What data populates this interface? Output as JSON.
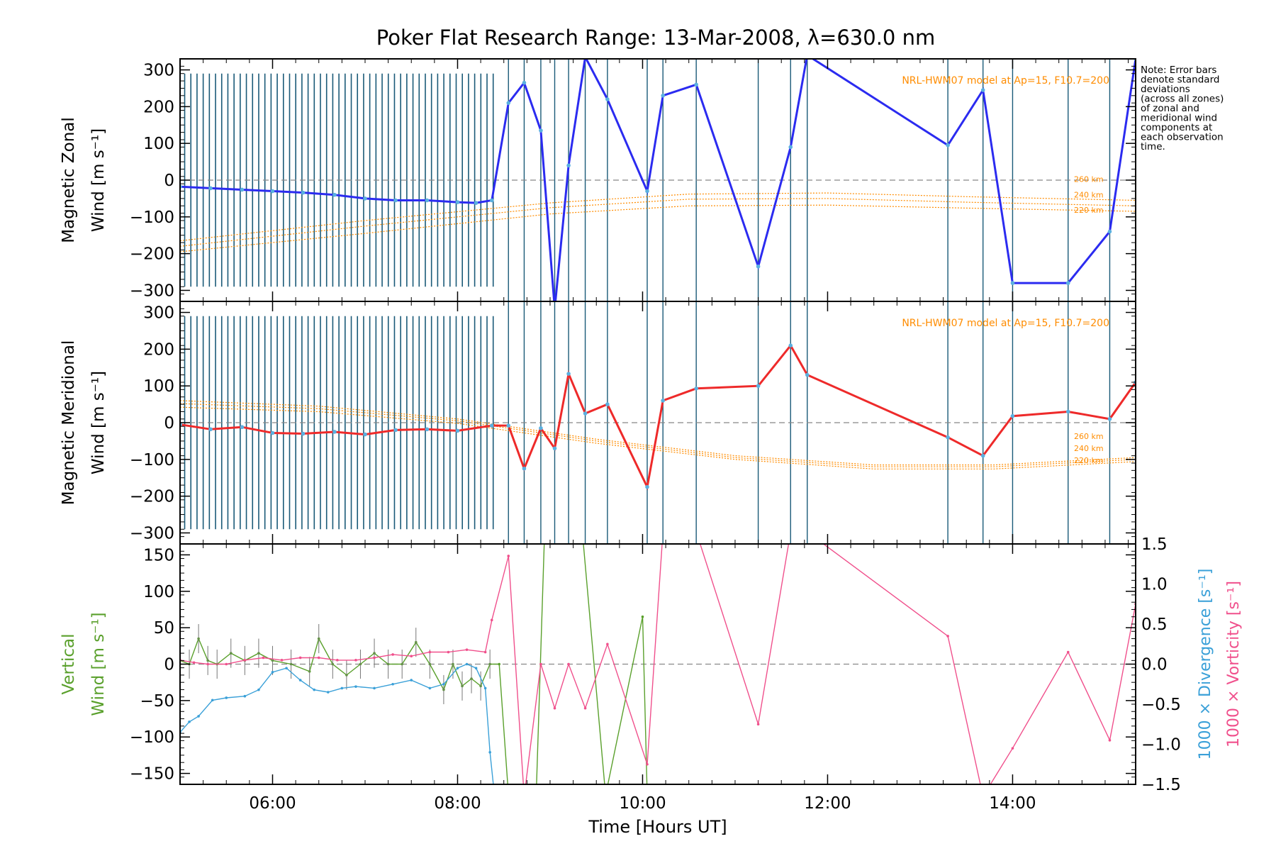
{
  "title": "Poker Flat Research Range: 13-Mar-2008, λ=630.0 nm",
  "note": [
    "Note: Error bars",
    "denote standard",
    "deviations",
    "(across all zones)",
    "of zonal and",
    "meridional wind",
    "components at",
    "each observation",
    "time."
  ],
  "colors": {
    "zonal": "#2b2bf0",
    "meridional": "#ee2a2a",
    "model": "#ff8c00",
    "vertical": "#5aa02c",
    "divergence": "#3aa0d8",
    "vorticity": "#f0508c",
    "obs_lines": "#1a5a78",
    "zero_line": "#888888"
  },
  "chart_data": [
    {
      "type": "line",
      "ylabel": [
        "Magnetic Zonal",
        "Wind [m s⁻¹]"
      ],
      "xlim": [
        5.0,
        15.33
      ],
      "ylim": [
        -330,
        330
      ],
      "yticks": [
        -300,
        -200,
        -100,
        0,
        100,
        200,
        300
      ],
      "model_label": "NRL-HWM07 model at Ap=15, F10.7=200",
      "model_curves": [
        {
          "name": "260 km",
          "x": [
            5.0,
            7.0,
            9.0,
            10.5,
            12.0,
            13.5,
            15.33
          ],
          "y": [
            -165,
            -110,
            -62,
            -38,
            -35,
            -45,
            -55
          ]
        },
        {
          "name": "240 km",
          "x": [
            5.0,
            7.0,
            9.0,
            10.5,
            12.0,
            13.5,
            15.33
          ],
          "y": [
            -180,
            -125,
            -75,
            -52,
            -50,
            -60,
            -70
          ]
        },
        {
          "name": "220 km",
          "x": [
            5.0,
            7.0,
            9.0,
            10.5,
            12.0,
            13.5,
            15.33
          ],
          "y": [
            -195,
            -145,
            -92,
            -70,
            -68,
            -76,
            -85
          ]
        }
      ],
      "series": [
        {
          "x": [
            5.0,
            5.33,
            5.67,
            6.0,
            6.33,
            6.67,
            7.0,
            7.33,
            7.67,
            8.0,
            8.2,
            8.37,
            8.55,
            8.72,
            8.9,
            9.05,
            9.2,
            9.38,
            9.62,
            10.05,
            10.22,
            10.58,
            11.25,
            11.6,
            11.78,
            13.3,
            13.68,
            14.0,
            14.6,
            15.05,
            15.33
          ],
          "y": [
            -18,
            -22,
            -26,
            -30,
            -34,
            -40,
            -50,
            -55,
            -55,
            -60,
            -62,
            -55,
            210,
            265,
            135,
            -350,
            40,
            335,
            220,
            -30,
            230,
            260,
            -235,
            90,
            340,
            95,
            245,
            -280,
            -280,
            -140,
            330
          ]
        }
      ]
    },
    {
      "type": "line",
      "ylabel": [
        "Magnetic Meridional",
        "Wind [m s⁻¹]"
      ],
      "xlim": [
        5.0,
        15.33
      ],
      "ylim": [
        -330,
        330
      ],
      "yticks": [
        -300,
        -200,
        -100,
        0,
        100,
        200,
        300
      ],
      "model_label": "NRL-HWM07 model at Ap=15, F10.7=200",
      "model_curves": [
        {
          "name": "260 km",
          "x": [
            5.0,
            6.5,
            8.0,
            9.5,
            11.0,
            12.5,
            13.8,
            15.33
          ],
          "y": [
            60,
            45,
            10,
            -45,
            -90,
            -115,
            -115,
            -95
          ]
        },
        {
          "name": "240 km",
          "x": [
            5.0,
            6.5,
            8.0,
            9.5,
            11.0,
            12.5,
            13.8,
            15.33
          ],
          "y": [
            52,
            38,
            5,
            -50,
            -95,
            -120,
            -120,
            -100
          ]
        },
        {
          "name": "220 km",
          "x": [
            5.0,
            6.5,
            8.0,
            9.5,
            11.0,
            12.5,
            13.8,
            15.33
          ],
          "y": [
            42,
            30,
            -2,
            -56,
            -100,
            -126,
            -126,
            -106
          ]
        }
      ],
      "series": [
        {
          "x": [
            5.0,
            5.33,
            5.67,
            6.0,
            6.33,
            6.67,
            7.0,
            7.33,
            7.67,
            8.0,
            8.37,
            8.55,
            8.72,
            8.9,
            9.05,
            9.2,
            9.38,
            9.62,
            10.05,
            10.22,
            10.58,
            11.25,
            11.6,
            11.78,
            13.3,
            13.68,
            14.0,
            14.6,
            15.05,
            15.33
          ],
          "y": [
            -5,
            -18,
            -12,
            -28,
            -30,
            -25,
            -32,
            -20,
            -18,
            -22,
            -8,
            -8,
            -125,
            -15,
            -70,
            133,
            25,
            50,
            -175,
            60,
            93,
            100,
            210,
            130,
            -40,
            -90,
            18,
            30,
            10,
            110
          ]
        }
      ]
    },
    {
      "type": "line",
      "ylabel": [
        "Vertical",
        "Wind [m s⁻¹]"
      ],
      "y2label": [
        "1000 × Divergence [s⁻¹]",
        "1000 × Vorticity [s⁻¹]"
      ],
      "xlabel": "Time [Hours UT]",
      "xlim": [
        5.0,
        15.33
      ],
      "xticks": [
        6,
        8,
        10,
        12,
        14
      ],
      "xticklabels": [
        "06:00",
        "08:00",
        "10:00",
        "12:00",
        "14:00"
      ],
      "ylim": [
        -165,
        165
      ],
      "yticks": [
        -150,
        -100,
        -50,
        0,
        50,
        100,
        150
      ],
      "y2lim": [
        -1.5,
        1.5
      ],
      "y2ticks": [
        -1.5,
        -1.0,
        -0.5,
        0.0,
        0.5,
        1.0,
        1.5
      ],
      "y2ticklabels": [
        "−1.5",
        "−1.0",
        "−0.5",
        "0.0",
        "0.5",
        "1.0",
        "1.5"
      ],
      "series": [
        {
          "name": "vertical",
          "x": [
            5.0,
            5.1,
            5.2,
            5.3,
            5.4,
            5.55,
            5.7,
            5.85,
            6.0,
            6.2,
            6.4,
            6.5,
            6.65,
            6.8,
            6.95,
            7.1,
            7.25,
            7.4,
            7.55,
            7.7,
            7.85,
            7.95,
            8.05,
            8.15,
            8.25,
            8.35,
            8.45,
            8.55,
            8.85,
            8.95,
            9.1,
            9.35,
            9.6,
            10.0,
            10.05
          ],
          "y": [
            5,
            0,
            35,
            5,
            0,
            15,
            5,
            15,
            5,
            0,
            -10,
            35,
            0,
            -15,
            0,
            15,
            0,
            0,
            30,
            0,
            -35,
            0,
            -30,
            -20,
            -30,
            0,
            0,
            -180,
            -180,
            220,
            180,
            180,
            -180,
            65,
            -180
          ]
        },
        {
          "name": "divergence",
          "x": [
            5.0,
            5.1,
            5.2,
            5.35,
            5.5,
            5.7,
            5.85,
            6.0,
            6.15,
            6.3,
            6.45,
            6.6,
            6.75,
            6.9,
            7.1,
            7.3,
            7.5,
            7.7,
            7.85,
            8.0,
            8.1,
            8.2,
            8.3,
            8.35,
            8.4
          ],
          "y": [
            -0.85,
            -0.72,
            -0.65,
            -0.45,
            -0.42,
            -0.4,
            -0.32,
            -0.1,
            -0.05,
            -0.2,
            -0.32,
            -0.35,
            -0.3,
            -0.28,
            -0.3,
            -0.25,
            -0.2,
            -0.3,
            -0.25,
            -0.05,
            0.0,
            -0.05,
            -0.3,
            -1.1,
            -1.65
          ]
        },
        {
          "name": "vorticity",
          "x": [
            5.0,
            5.15,
            5.3,
            5.5,
            5.7,
            5.9,
            6.1,
            6.3,
            6.5,
            6.7,
            6.9,
            7.1,
            7.3,
            7.5,
            7.7,
            7.9,
            8.1,
            8.3,
            8.37,
            8.55,
            8.72,
            8.9,
            9.05,
            9.2,
            9.38,
            9.62,
            10.05,
            10.22,
            10.58,
            11.25,
            11.6,
            11.78,
            13.3,
            13.68,
            14.0,
            14.6,
            15.05,
            15.33
          ],
          "y": [
            0.05,
            0.02,
            0.0,
            0.0,
            0.05,
            0.08,
            0.05,
            0.08,
            0.08,
            0.05,
            0.05,
            0.08,
            0.12,
            0.1,
            0.15,
            0.15,
            0.18,
            0.15,
            0.55,
            1.35,
            -1.65,
            0.0,
            -0.55,
            0.0,
            -0.55,
            0.25,
            -1.25,
            1.65,
            1.65,
            -0.75,
            1.65,
            1.65,
            0.35,
            -1.65,
            -1.05,
            0.15,
            -0.95,
            0.75
          ]
        }
      ]
    }
  ],
  "obs_times": [
    8.55,
    8.72,
    8.9,
    9.05,
    9.2,
    9.38,
    9.62,
    10.05,
    10.22,
    10.58,
    11.25,
    11.6,
    11.78,
    13.3,
    13.68,
    14.0,
    14.6,
    15.05
  ]
}
